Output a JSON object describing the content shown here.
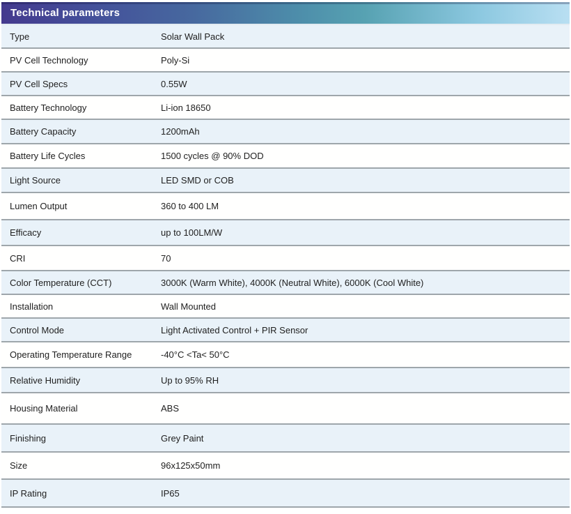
{
  "header": {
    "title": "Technical parameters"
  },
  "table": {
    "rows": [
      {
        "label": "Type",
        "value": "Solar Wall Pack"
      },
      {
        "label": "PV Cell Technology",
        "value": "Poly-Si"
      },
      {
        "label": "PV Cell Specs",
        "value": "0.55W"
      },
      {
        "label": "Battery Technology",
        "value": "Li-ion 18650"
      },
      {
        "label": "Battery Capacity",
        "value": "1200mAh"
      },
      {
        "label": "Battery Life Cycles",
        "value": "1500 cycles @ 90% DOD"
      },
      {
        "label": "Light Source",
        "value": "LED SMD or COB"
      },
      {
        "label": "Lumen Output",
        "value": "360 to 400 LM"
      },
      {
        "label": "Efficacy",
        "value": "up to 100LM/W"
      },
      {
        "label": "CRI",
        "value": "70"
      },
      {
        "label": "Color Temperature (CCT)",
        "value": "3000K (Warm White), 4000K (Neutral White), 6000K (Cool White)"
      },
      {
        "label": "Installation",
        "value": "Wall Mounted"
      },
      {
        "label": "Control Mode",
        "value": "Light Activated Control + PIR Sensor"
      },
      {
        "label": "Operating Temperature Range",
        "value": "-40°C <Ta< 50°C"
      },
      {
        "label": "Relative Humidity",
        "value": "Up to 95% RH"
      },
      {
        "label": "Housing Material",
        "value": "ABS"
      },
      {
        "label": "Finishing",
        "value": "Grey Paint"
      },
      {
        "label": "Size",
        "value": "96x125x50mm"
      },
      {
        "label": "IP Rating",
        "value": "IP65"
      }
    ]
  },
  "colors": {
    "header_gradient_start": "#443a8e",
    "header_gradient_mid": "#4d8daa",
    "header_gradient_end": "#b9dff2",
    "header_text": "#ffffff",
    "row_alt_blue": "#e9f2f9",
    "row_white": "#fffffe",
    "divider": "#9ea6ab",
    "body_text": "#212121"
  }
}
